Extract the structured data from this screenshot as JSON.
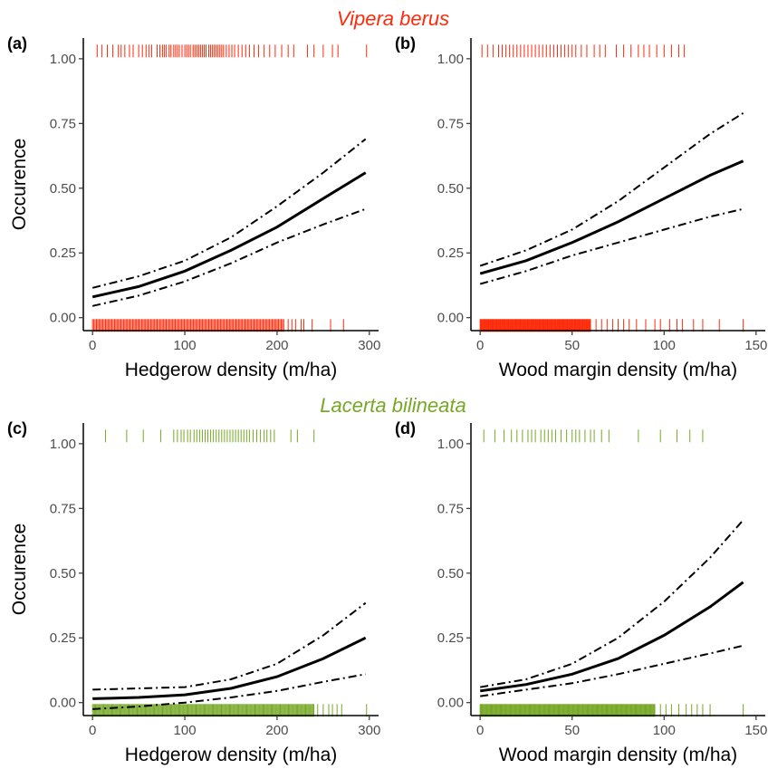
{
  "species_titles": [
    {
      "text": "Vipera berus",
      "color": "#ff2a0a"
    },
    {
      "text": "Lacerta bilineata",
      "color": "#76a825"
    }
  ],
  "chart_data": [
    {
      "type": "line",
      "panel_label": "(a)",
      "xlabel": "Hedgerow density (m/ha)",
      "ylabel": "Occurence",
      "xlim": [
        -10,
        310
      ],
      "ylim": [
        -0.05,
        1.08
      ],
      "xticks": [
        0,
        100,
        200,
        300
      ],
      "yticks": [
        0.0,
        0.25,
        0.5,
        0.75,
        1.0
      ],
      "yticklabels": [
        "0.00",
        "0.25",
        "0.50",
        "0.75",
        "1.00"
      ],
      "rug_color": "#ff2a0a",
      "fit": {
        "x": [
          0,
          50,
          100,
          150,
          200,
          250,
          296
        ],
        "y": [
          0.08,
          0.12,
          0.18,
          0.26,
          0.35,
          0.46,
          0.56
        ]
      },
      "upper": {
        "x": [
          0,
          50,
          100,
          150,
          200,
          250,
          296
        ],
        "y": [
          0.115,
          0.16,
          0.22,
          0.31,
          0.43,
          0.56,
          0.69
        ]
      },
      "lower": {
        "x": [
          0,
          50,
          100,
          150,
          200,
          250,
          296
        ],
        "y": [
          0.045,
          0.085,
          0.14,
          0.21,
          0.29,
          0.36,
          0.42
        ]
      },
      "rug_present": {
        "y": 1.03,
        "x": [
          5,
          10,
          16,
          22,
          28,
          31,
          35,
          40,
          44,
          50,
          54,
          58,
          61,
          64,
          70,
          73,
          76,
          78,
          80,
          83,
          85,
          88,
          90,
          92,
          94,
          97,
          100,
          102,
          104,
          106,
          109,
          111,
          113,
          115,
          117,
          119,
          121,
          123,
          126,
          128,
          130,
          132,
          134,
          136,
          138,
          140,
          142,
          145,
          148,
          151,
          154,
          158,
          162,
          166,
          170,
          175,
          180,
          186,
          192,
          198,
          205,
          212,
          218,
          233,
          240,
          250,
          260,
          266,
          297
        ]
      },
      "rug_absent": {
        "y": -0.03,
        "range": [
          0,
          208
        ],
        "step": 1.4,
        "extra": [
          212,
          216,
          220,
          226,
          229,
          238,
          258,
          272
        ]
      }
    },
    {
      "type": "line",
      "panel_label": "(b)",
      "xlabel": "Wood margin density (m/ha)",
      "ylabel": "",
      "xlim": [
        -5,
        155
      ],
      "ylim": [
        -0.05,
        1.08
      ],
      "xticks": [
        0,
        50,
        100,
        150
      ],
      "yticks": [
        0.0,
        0.25,
        0.5,
        0.75,
        1.0
      ],
      "yticklabels": [
        "0.00",
        "0.25",
        "0.50",
        "0.75",
        "1.00"
      ],
      "rug_color": "#ff2a0a",
      "fit": {
        "x": [
          0,
          25,
          50,
          75,
          100,
          125,
          143
        ],
        "y": [
          0.17,
          0.22,
          0.29,
          0.37,
          0.46,
          0.55,
          0.605
        ]
      },
      "upper": {
        "x": [
          0,
          25,
          50,
          75,
          100,
          125,
          143
        ],
        "y": [
          0.2,
          0.26,
          0.34,
          0.45,
          0.58,
          0.71,
          0.79
        ]
      },
      "lower": {
        "x": [
          0,
          25,
          50,
          75,
          100,
          125,
          143
        ],
        "y": [
          0.13,
          0.18,
          0.24,
          0.29,
          0.34,
          0.39,
          0.42
        ]
      },
      "rug_present": {
        "y": 1.03,
        "x": [
          1,
          4,
          7,
          10,
          12,
          14,
          16,
          18,
          20,
          22,
          24,
          26,
          28,
          30,
          32,
          34,
          36,
          38,
          40,
          42,
          44,
          46,
          48,
          50,
          52,
          55,
          58,
          62,
          65,
          68,
          74,
          78,
          82,
          86,
          89,
          92,
          96,
          100,
          104,
          108,
          111
        ]
      },
      "rug_absent": {
        "y": -0.03,
        "range": [
          0,
          60
        ],
        "step": 0.4,
        "extra": [
          63,
          66,
          69,
          72,
          75,
          78,
          81,
          85,
          90,
          95,
          98,
          103,
          107,
          110,
          116,
          121,
          130,
          143
        ]
      }
    },
    {
      "type": "line",
      "panel_label": "(c)",
      "xlabel": "Hedgerow density (m/ha)",
      "ylabel": "Occurence",
      "xlim": [
        -10,
        310
      ],
      "ylim": [
        -0.05,
        1.08
      ],
      "xticks": [
        0,
        100,
        200,
        300
      ],
      "yticks": [
        0.0,
        0.25,
        0.5,
        0.75,
        1.0
      ],
      "yticklabels": [
        "0.00",
        "0.25",
        "0.50",
        "0.75",
        "1.00"
      ],
      "rug_color": "#76a825",
      "fit": {
        "x": [
          0,
          50,
          100,
          150,
          200,
          250,
          296
        ],
        "y": [
          0.015,
          0.02,
          0.03,
          0.055,
          0.1,
          0.17,
          0.25
        ]
      },
      "upper": {
        "x": [
          0,
          50,
          100,
          150,
          200,
          250,
          296
        ],
        "y": [
          0.05,
          0.055,
          0.06,
          0.09,
          0.15,
          0.26,
          0.385
        ]
      },
      "lower": {
        "x": [
          0,
          50,
          100,
          150,
          200,
          250,
          296
        ],
        "y": [
          -0.025,
          -0.015,
          0.0,
          0.02,
          0.045,
          0.08,
          0.11
        ]
      },
      "rug_present": {
        "y": 1.03,
        "x": [
          14,
          37,
          55,
          74,
          88,
          92,
          96,
          99,
          103,
          106,
          110,
          113,
          116,
          119,
          122,
          125,
          128,
          131,
          134,
          137,
          140,
          143,
          146,
          149,
          152,
          155,
          158,
          161,
          164,
          167,
          170,
          174,
          178,
          182,
          186,
          189,
          193,
          197,
          215,
          222,
          240
        ]
      },
      "rug_absent": {
        "y": -0.03,
        "range": [
          0,
          240
        ],
        "step": 1.1,
        "extra": [
          244,
          250,
          256,
          260,
          265,
          270,
          297
        ]
      }
    },
    {
      "type": "line",
      "panel_label": "(d)",
      "xlabel": "Wood margin density (m/ha)",
      "ylabel": "",
      "xlim": [
        -5,
        155
      ],
      "ylim": [
        -0.05,
        1.08
      ],
      "xticks": [
        0,
        50,
        100,
        150
      ],
      "yticks": [
        0.0,
        0.25,
        0.5,
        0.75,
        1.0
      ],
      "yticklabels": [
        "0.00",
        "0.25",
        "0.50",
        "0.75",
        "1.00"
      ],
      "rug_color": "#76a825",
      "fit": {
        "x": [
          0,
          25,
          50,
          75,
          100,
          125,
          143
        ],
        "y": [
          0.045,
          0.07,
          0.11,
          0.17,
          0.26,
          0.37,
          0.465
        ]
      },
      "upper": {
        "x": [
          0,
          25,
          50,
          75,
          100,
          125,
          143
        ],
        "y": [
          0.06,
          0.09,
          0.15,
          0.25,
          0.39,
          0.56,
          0.705
        ]
      },
      "lower": {
        "x": [
          0,
          25,
          50,
          75,
          100,
          125,
          143
        ],
        "y": [
          0.025,
          0.05,
          0.075,
          0.11,
          0.15,
          0.19,
          0.22
        ]
      },
      "rug_present": {
        "y": 1.03,
        "x": [
          2,
          8,
          13,
          17,
          20,
          23,
          26,
          28,
          30,
          33,
          35,
          37,
          39,
          41,
          44,
          47,
          50,
          52,
          54,
          57,
          60,
          62,
          66,
          70,
          86,
          98,
          107,
          114,
          121
        ]
      },
      "rug_absent": {
        "y": -0.03,
        "range": [
          0,
          95
        ],
        "step": 0.45,
        "extra": [
          98,
          101,
          104,
          108,
          112,
          115,
          118,
          121,
          125,
          143
        ]
      }
    }
  ]
}
